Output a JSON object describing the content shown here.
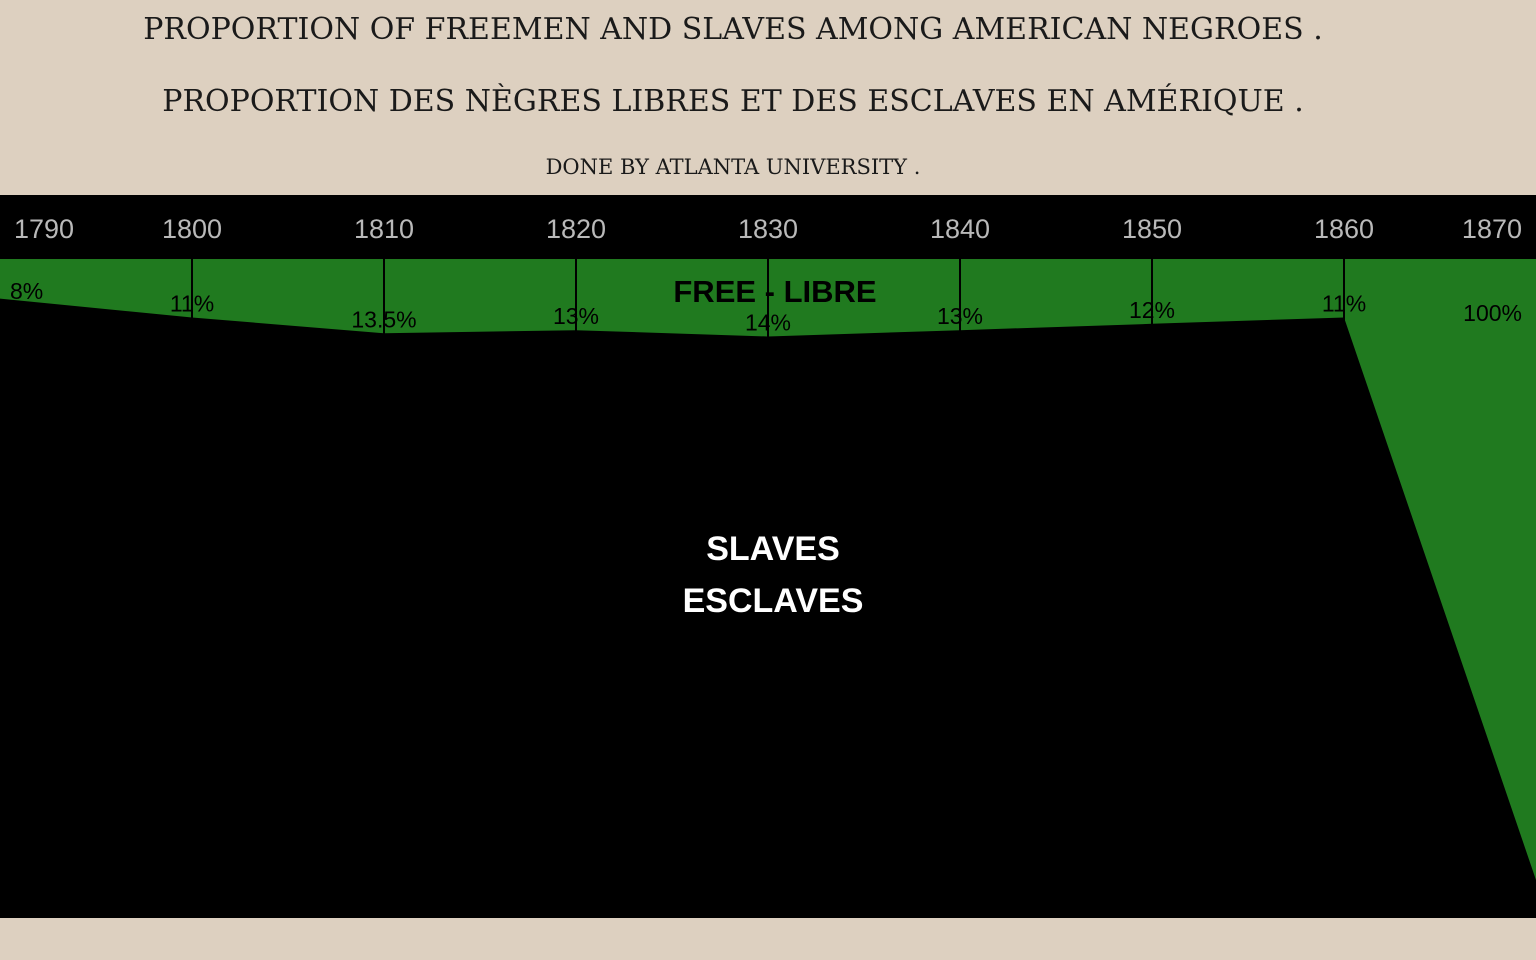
{
  "header": {
    "title_en": "PROPORTION OF FREEMEN AND SLAVES AMONG AMERICAN NEGROES .",
    "title_fr": "PROPORTION DES NÈGRES LIBRES ET DES ESCLAVES EN AMÉRIQUE .",
    "subtitle": "DONE BY ATLANTA UNIVERSITY ."
  },
  "colors": {
    "background": "#ddd0c0",
    "free": "#207a1f",
    "slaves": "#000000",
    "year_text": "#b9b9b9"
  },
  "chart_data": {
    "type": "area",
    "title": "PROPORTION OF FREEMEN AND SLAVES AMONG AMERICAN NEGROES .",
    "x": [
      1790,
      1800,
      1810,
      1820,
      1830,
      1840,
      1850,
      1860,
      1870
    ],
    "series": [
      {
        "name": "FREE - LIBRE",
        "values": [
          8,
          11,
          13.5,
          13,
          14,
          13,
          12,
          11,
          100
        ],
        "labels": [
          "8%",
          "11%",
          "13.5%",
          "13%",
          "14%",
          "13%",
          "12%",
          "11%",
          "100%"
        ]
      },
      {
        "name": "SLAVES ESCLAVES",
        "values": [
          92,
          89,
          86.5,
          87,
          86,
          87,
          88,
          89,
          0
        ]
      }
    ],
    "free_label": "FREE - LIBRE",
    "slave_label_line1": "SLAVES",
    "slave_label_line2": "ESCLAVES",
    "ylim": [
      0,
      100
    ],
    "xlim": [
      1790,
      1870
    ],
    "grid": false,
    "legend": "none"
  }
}
